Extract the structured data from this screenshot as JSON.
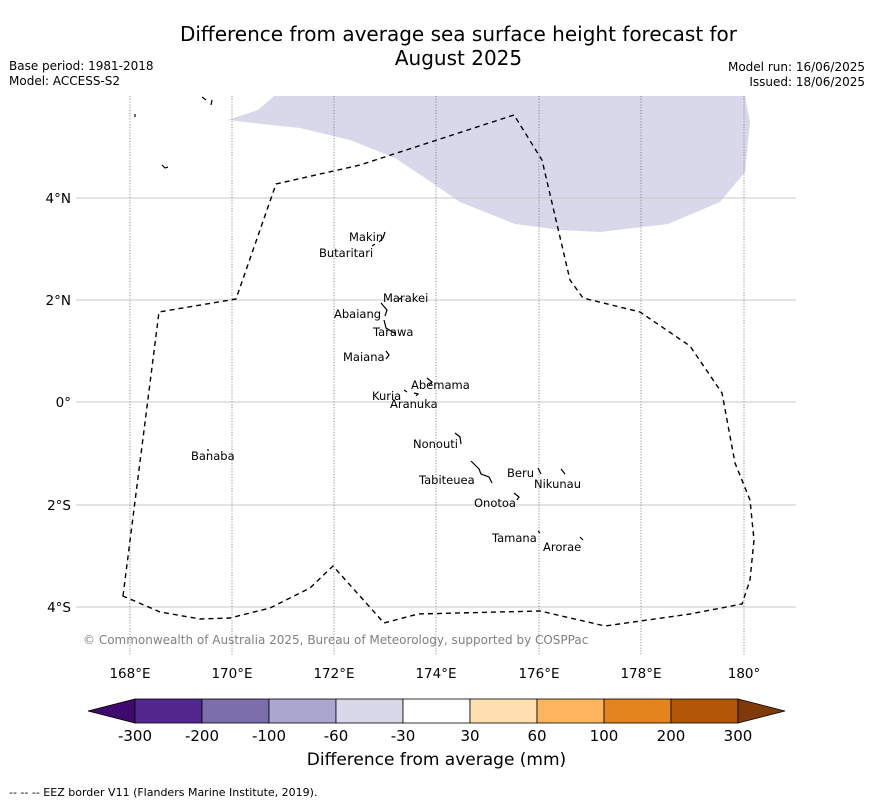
{
  "title_line1": "Difference from average sea surface height forecast for",
  "title_line2": "August 2025",
  "meta_left": {
    "base_period": "Base period: 1981-2018",
    "model": "Model: ACCESS-S2"
  },
  "meta_right": {
    "model_run": "Model run: 16/06/2025",
    "issued": "Issued: 18/06/2025"
  },
  "lon_ticks": [
    "168°E",
    "170°E",
    "172°E",
    "174°E",
    "176°E",
    "178°E",
    "180°"
  ],
  "lat_ticks": [
    "4°N",
    "2°N",
    "0°",
    "2°S",
    "4°S"
  ],
  "places": [
    "Makin",
    "Butaritari",
    "Marakei",
    "Abaiang",
    "Tarawa",
    "Maiana",
    "Abemama",
    "Kuria",
    "Aranuka",
    "Nonouti",
    "Banaba",
    "Beru",
    "Nikunau",
    "Tabiteuea",
    "Onotoa",
    "Tamana",
    "Arorae"
  ],
  "copyright": "© Commonwealth of Australia 2025, Bureau of Meteorology, supported by COSPPac",
  "colorbar": {
    "label": "Difference from average (mm)",
    "tick_labels": [
      "-300",
      "-200",
      "-100",
      "-60",
      "-30",
      "30",
      "60",
      "100",
      "200",
      "300"
    ],
    "colors": [
      "#3f0a6e",
      "#54278f",
      "#7b6eab",
      "#aba6cf",
      "#d8d8ea",
      "#ffffff",
      "#fddfb0",
      "#fdb45e",
      "#e3841c",
      "#b15506",
      "#803a0a"
    ]
  },
  "footnote": "--  --  -- EEZ border V11 (Flanders Marine Institute, 2019).",
  "map_colors": {
    "ssh_anomaly_fill": "#d8d8ea",
    "eez_border": "#000000",
    "grid": "#c8c8c8"
  }
}
